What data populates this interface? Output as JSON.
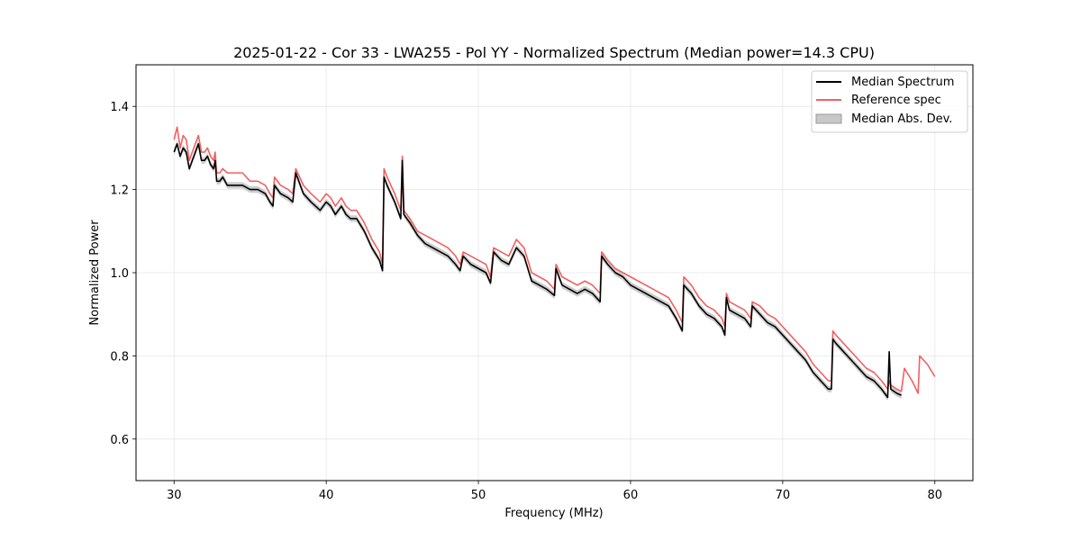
{
  "chart_data": {
    "type": "line",
    "title": "2025-01-22 - Cor 33 - LWA255 - Pol YY - Normalized Spectrum (Median power=14.3 CPU)",
    "xlabel": "Frequency (MHz)",
    "ylabel": "Normalized Power",
    "xlim": [
      27.5,
      82.5
    ],
    "ylim": [
      0.5,
      1.5
    ],
    "xticks": [
      30,
      40,
      50,
      60,
      70,
      80
    ],
    "yticks": [
      0.6,
      0.8,
      1.0,
      1.2,
      1.4
    ],
    "xtick_labels": [
      "30",
      "40",
      "50",
      "60",
      "70",
      "80"
    ],
    "ytick_labels": [
      "0.6",
      "0.8",
      "1.0",
      "1.2",
      "1.4"
    ],
    "grid": true,
    "legend_position": "top-right",
    "legend": [
      "Median Spectrum",
      "Reference spec",
      "Median Abs. Dev."
    ],
    "colors": {
      "median": "#000000",
      "reference": "#f26060",
      "mad": "#c8c8c8"
    },
    "mad_halfwidth": 0.008,
    "series": [
      {
        "name": "Median Spectrum",
        "x": [
          30.0,
          30.2,
          30.4,
          30.6,
          30.8,
          31.0,
          31.2,
          31.4,
          31.6,
          31.8,
          32.0,
          32.2,
          32.4,
          32.6,
          32.7,
          32.8,
          33.0,
          33.2,
          33.5,
          34.0,
          34.5,
          35.0,
          35.5,
          36.0,
          36.3,
          36.5,
          36.6,
          37.0,
          37.5,
          37.8,
          38.0,
          38.5,
          39.0,
          39.3,
          39.6,
          40.0,
          40.3,
          40.6,
          41.0,
          41.3,
          41.6,
          42.0,
          42.5,
          43.0,
          43.5,
          43.7,
          43.8,
          44.0,
          44.5,
          44.9,
          45.0,
          45.1,
          45.5,
          46.0,
          46.5,
          47.0,
          47.5,
          48.0,
          48.5,
          48.8,
          49.0,
          49.5,
          50.0,
          50.5,
          50.8,
          51.0,
          51.5,
          52.0,
          52.5,
          53.0,
          53.5,
          54.0,
          54.5,
          55.0,
          55.1,
          55.5,
          56.0,
          56.5,
          57.0,
          57.5,
          58.0,
          58.1,
          58.5,
          59.0,
          59.5,
          60.0,
          60.5,
          61.0,
          61.5,
          62.0,
          62.5,
          63.0,
          63.4,
          63.5,
          64.0,
          64.5,
          65.0,
          65.5,
          66.0,
          66.2,
          66.3,
          66.5,
          67.0,
          67.5,
          67.9,
          68.0,
          68.5,
          69.0,
          69.5,
          70.0,
          70.5,
          71.0,
          71.5,
          72.0,
          72.5,
          73.0,
          73.2,
          73.3,
          73.5,
          74.0,
          74.5,
          75.0,
          75.5,
          76.0,
          76.5,
          76.9,
          77.0,
          77.1,
          77.5,
          77.8
        ],
        "y": [
          1.29,
          1.31,
          1.28,
          1.3,
          1.29,
          1.25,
          1.27,
          1.29,
          1.31,
          1.27,
          1.27,
          1.28,
          1.26,
          1.25,
          1.27,
          1.22,
          1.22,
          1.23,
          1.21,
          1.21,
          1.21,
          1.2,
          1.2,
          1.19,
          1.17,
          1.16,
          1.21,
          1.19,
          1.18,
          1.17,
          1.24,
          1.19,
          1.17,
          1.16,
          1.15,
          1.17,
          1.16,
          1.14,
          1.16,
          1.14,
          1.13,
          1.13,
          1.1,
          1.06,
          1.03,
          1.005,
          1.23,
          1.21,
          1.17,
          1.13,
          1.27,
          1.14,
          1.12,
          1.09,
          1.07,
          1.06,
          1.05,
          1.04,
          1.02,
          1.005,
          1.04,
          1.02,
          1.01,
          1.0,
          0.975,
          1.05,
          1.03,
          1.02,
          1.06,
          1.04,
          0.98,
          0.97,
          0.96,
          0.945,
          1.01,
          0.97,
          0.96,
          0.95,
          0.96,
          0.95,
          0.93,
          1.04,
          1.02,
          1.0,
          0.99,
          0.97,
          0.96,
          0.95,
          0.94,
          0.93,
          0.92,
          0.89,
          0.86,
          0.97,
          0.95,
          0.92,
          0.9,
          0.89,
          0.87,
          0.85,
          0.94,
          0.91,
          0.9,
          0.89,
          0.87,
          0.92,
          0.9,
          0.88,
          0.87,
          0.85,
          0.83,
          0.81,
          0.79,
          0.76,
          0.74,
          0.72,
          0.72,
          0.84,
          0.83,
          0.81,
          0.79,
          0.77,
          0.75,
          0.74,
          0.72,
          0.7,
          0.81,
          0.72,
          0.71,
          0.705
        ]
      },
      {
        "name": "Reference spec",
        "x": [
          30.0,
          30.2,
          30.4,
          30.6,
          30.8,
          31.0,
          31.2,
          31.4,
          31.6,
          31.8,
          32.0,
          32.2,
          32.4,
          32.6,
          32.7,
          32.8,
          33.0,
          33.2,
          33.5,
          34.0,
          34.5,
          35.0,
          35.5,
          36.0,
          36.3,
          36.5,
          36.6,
          37.0,
          37.5,
          37.8,
          38.0,
          38.5,
          39.0,
          39.3,
          39.6,
          40.0,
          40.3,
          40.6,
          41.0,
          41.3,
          41.6,
          42.0,
          42.5,
          43.0,
          43.5,
          43.7,
          43.8,
          44.0,
          44.5,
          44.9,
          45.0,
          45.1,
          45.5,
          46.0,
          46.5,
          47.0,
          47.5,
          48.0,
          48.5,
          48.8,
          49.0,
          49.5,
          50.0,
          50.5,
          50.8,
          51.0,
          51.5,
          52.0,
          52.5,
          53.0,
          53.5,
          54.0,
          54.5,
          55.0,
          55.1,
          55.5,
          56.0,
          56.5,
          57.0,
          57.5,
          58.0,
          58.1,
          58.5,
          59.0,
          59.5,
          60.0,
          60.5,
          61.0,
          61.5,
          62.0,
          62.5,
          63.0,
          63.4,
          63.5,
          64.0,
          64.5,
          65.0,
          65.5,
          66.0,
          66.2,
          66.3,
          66.5,
          67.0,
          67.5,
          67.9,
          68.0,
          68.5,
          69.0,
          69.5,
          70.0,
          70.5,
          71.0,
          71.5,
          72.0,
          72.5,
          73.0,
          73.2,
          73.3,
          73.5,
          74.0,
          74.5,
          75.0,
          75.5,
          76.0,
          76.5,
          76.9,
          77.0,
          77.1,
          77.5,
          77.8,
          78.0,
          78.5,
          78.9,
          79.0,
          79.5,
          80.0
        ],
        "y": [
          1.32,
          1.35,
          1.3,
          1.33,
          1.32,
          1.27,
          1.29,
          1.31,
          1.33,
          1.29,
          1.29,
          1.3,
          1.28,
          1.27,
          1.29,
          1.24,
          1.24,
          1.25,
          1.24,
          1.24,
          1.24,
          1.22,
          1.22,
          1.21,
          1.19,
          1.18,
          1.23,
          1.21,
          1.2,
          1.19,
          1.25,
          1.21,
          1.19,
          1.18,
          1.17,
          1.19,
          1.18,
          1.16,
          1.18,
          1.16,
          1.15,
          1.15,
          1.12,
          1.08,
          1.05,
          1.02,
          1.25,
          1.23,
          1.19,
          1.15,
          1.28,
          1.15,
          1.13,
          1.1,
          1.09,
          1.08,
          1.07,
          1.06,
          1.04,
          1.02,
          1.05,
          1.04,
          1.03,
          1.02,
          0.99,
          1.06,
          1.05,
          1.04,
          1.08,
          1.06,
          1.0,
          0.99,
          0.98,
          0.96,
          1.02,
          0.99,
          0.98,
          0.97,
          0.98,
          0.97,
          0.95,
          1.05,
          1.03,
          1.01,
          1.0,
          0.99,
          0.98,
          0.97,
          0.96,
          0.95,
          0.94,
          0.91,
          0.88,
          0.99,
          0.97,
          0.94,
          0.92,
          0.91,
          0.89,
          0.87,
          0.95,
          0.93,
          0.92,
          0.91,
          0.89,
          0.93,
          0.92,
          0.9,
          0.89,
          0.87,
          0.85,
          0.83,
          0.81,
          0.78,
          0.76,
          0.74,
          0.74,
          0.86,
          0.85,
          0.83,
          0.81,
          0.79,
          0.77,
          0.76,
          0.74,
          0.72,
          0.74,
          0.73,
          0.72,
          0.715,
          0.77,
          0.74,
          0.71,
          0.8,
          0.78,
          0.75
        ]
      }
    ]
  }
}
